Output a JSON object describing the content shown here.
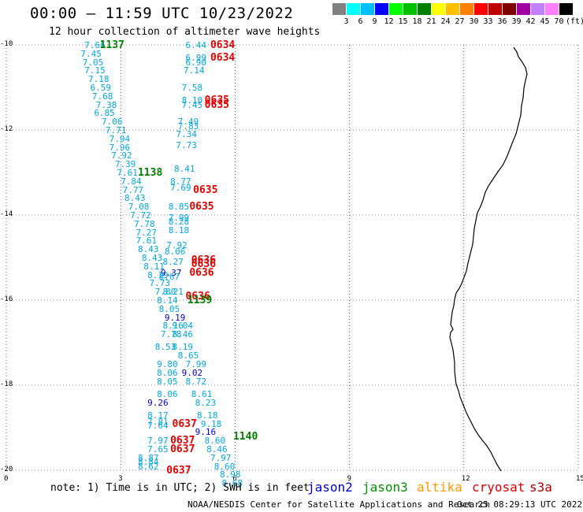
{
  "title": "00:00 – 11:59 UTC 10/23/2022",
  "subtitle": "12 hour collection of altimeter wave heights",
  "colorbar": {
    "colors": [
      "#808080",
      "#00ffff",
      "#00bfff",
      "#0000ff",
      "#00ff00",
      "#00c000",
      "#008000",
      "#ffff00",
      "#ffc000",
      "#ff8000",
      "#ff0000",
      "#c00000",
      "#800000",
      "#a000a0",
      "#c080ff",
      "#ff80ff",
      "#000000"
    ],
    "labels": [
      "3",
      "6",
      "9",
      "12",
      "15",
      "18",
      "21",
      "24",
      "27",
      "30",
      "33",
      "36",
      "39",
      "42",
      "45",
      "70"
    ],
    "unit": "(ft)"
  },
  "y_ticks": [
    "-10",
    "-12",
    "-14",
    "-16",
    "-18",
    "-20"
  ],
  "x_ticks": [
    "0",
    "3",
    "6",
    "9",
    "12",
    "15"
  ],
  "note": "note: 1) Time is in UTC; 2) SWH is in feet",
  "legend": [
    {
      "label": "jason2",
      "color": "#0000cc"
    },
    {
      "label": "jason3",
      "color": "#009000"
    },
    {
      "label": "altika",
      "color": "#ff9900"
    },
    {
      "label": "cryosat",
      "color": "#dd0000"
    },
    {
      "label": "s3a",
      "color": "#aa0000"
    }
  ],
  "credit": "NOAA/NESDIS Center for Satellite Applications and Research",
  "timestamp": "Oct 25 08:29:13 UTC 2022",
  "observations": [
    {
      "lon": 2.05,
      "lat": -10.0,
      "text": "7.66",
      "c": "cyan"
    },
    {
      "lon": 1.95,
      "lat": -10.2,
      "text": "7.45",
      "c": "cyan"
    },
    {
      "lon": 2.0,
      "lat": -10.4,
      "text": "7.05",
      "c": "cyan"
    },
    {
      "lon": 2.05,
      "lat": -10.6,
      "text": "7.15",
      "c": "cyan"
    },
    {
      "lon": 2.15,
      "lat": -10.8,
      "text": "7.18",
      "c": "cyan"
    },
    {
      "lon": 2.2,
      "lat": -11.0,
      "text": "6.59",
      "c": "cyan"
    },
    {
      "lon": 2.25,
      "lat": -11.2,
      "text": "7.68",
      "c": "cyan"
    },
    {
      "lon": 2.35,
      "lat": -11.4,
      "text": "7.38",
      "c": "cyan"
    },
    {
      "lon": 2.3,
      "lat": -11.6,
      "text": "6.85",
      "c": "cyan"
    },
    {
      "lon": 2.5,
      "lat": -11.8,
      "text": "7.06",
      "c": "cyan"
    },
    {
      "lon": 2.6,
      "lat": -12.0,
      "text": "7.71",
      "c": "cyan"
    },
    {
      "lon": 2.7,
      "lat": -12.2,
      "text": "7.94",
      "c": "cyan"
    },
    {
      "lon": 2.7,
      "lat": -12.4,
      "text": "7.96",
      "c": "cyan"
    },
    {
      "lon": 2.75,
      "lat": -12.6,
      "text": "7.92",
      "c": "cyan"
    },
    {
      "lon": 2.85,
      "lat": -12.8,
      "text": "7.39",
      "c": "cyan"
    },
    {
      "lon": 2.9,
      "lat": -13.0,
      "text": "7.61",
      "c": "cyan"
    },
    {
      "lon": 3.0,
      "lat": -13.2,
      "text": "7.84",
      "c": "cyan"
    },
    {
      "lon": 3.05,
      "lat": -13.4,
      "text": "7.77",
      "c": "cyan"
    },
    {
      "lon": 3.1,
      "lat": -13.6,
      "text": "8.43",
      "c": "cyan"
    },
    {
      "lon": 3.2,
      "lat": -13.8,
      "text": "7.08",
      "c": "cyan"
    },
    {
      "lon": 3.25,
      "lat": -14.0,
      "text": "7.72",
      "c": "cyan"
    },
    {
      "lon": 3.35,
      "lat": -14.2,
      "text": "7.78",
      "c": "cyan"
    },
    {
      "lon": 3.4,
      "lat": -14.4,
      "text": "7.27",
      "c": "cyan"
    },
    {
      "lon": 3.4,
      "lat": -14.6,
      "text": "7.61",
      "c": "cyan"
    },
    {
      "lon": 3.45,
      "lat": -14.8,
      "text": "8.43",
      "c": "cyan"
    },
    {
      "lon": 3.55,
      "lat": -15.0,
      "text": "8.43",
      "c": "cyan"
    },
    {
      "lon": 3.6,
      "lat": -15.2,
      "text": "8.11",
      "c": "cyan"
    },
    {
      "lon": 3.7,
      "lat": -15.4,
      "text": "8.19",
      "c": "cyan"
    },
    {
      "lon": 3.75,
      "lat": -15.6,
      "text": "7.73",
      "c": "cyan"
    },
    {
      "lon": 3.9,
      "lat": -15.8,
      "text": "7.80",
      "c": "cyan"
    },
    {
      "lon": 3.95,
      "lat": -16.0,
      "text": "8.14",
      "c": "cyan"
    },
    {
      "lon": 4.0,
      "lat": -16.2,
      "text": "8.05",
      "c": "cyan"
    },
    {
      "lon": 4.1,
      "lat": -16.6,
      "text": "8.16",
      "c": "cyan"
    },
    {
      "lon": 4.05,
      "lat": -16.8,
      "text": "7.78",
      "c": "cyan"
    },
    {
      "lon": 3.9,
      "lat": -17.1,
      "text": "8.53",
      "c": "cyan"
    },
    {
      "lon": 3.95,
      "lat": -17.5,
      "text": "9.80",
      "c": "cyan"
    },
    {
      "lon": 3.95,
      "lat": -17.7,
      "text": "8.06",
      "c": "cyan"
    },
    {
      "lon": 3.95,
      "lat": -17.9,
      "text": "8.05",
      "c": "cyan"
    },
    {
      "lon": 3.95,
      "lat": -18.2,
      "text": "8.06",
      "c": "cyan"
    },
    {
      "lon": 3.7,
      "lat": -18.4,
      "text": "9.26",
      "c": "blue"
    },
    {
      "lon": 3.7,
      "lat": -18.7,
      "text": "8.17",
      "c": "cyan"
    },
    {
      "lon": 3.7,
      "lat": -18.85,
      "text": "7.81",
      "c": "cyan"
    },
    {
      "lon": 3.7,
      "lat": -18.95,
      "text": "7.64",
      "c": "cyan"
    },
    {
      "lon": 3.7,
      "lat": -19.3,
      "text": "7.97",
      "c": "cyan"
    },
    {
      "lon": 3.7,
      "lat": -19.5,
      "text": "7.65",
      "c": "cyan"
    },
    {
      "lon": 3.45,
      "lat": -19.7,
      "text": "8.87",
      "c": "cyan"
    },
    {
      "lon": 3.45,
      "lat": -19.8,
      "text": "8.84",
      "c": "cyan"
    },
    {
      "lon": 3.45,
      "lat": -19.9,
      "text": "8.62",
      "c": "cyan"
    },
    {
      "lon": 2.45,
      "lat": -10.0,
      "text": "1137",
      "c": "green",
      "big": true
    },
    {
      "lon": 3.45,
      "lat": -13.0,
      "text": "1138",
      "c": "green",
      "big": true
    },
    {
      "lon": 4.7,
      "lat": -10.0,
      "text": "6.44",
      "c": "cyan"
    },
    {
      "lon": 4.7,
      "lat": -10.3,
      "text": "6.99",
      "c": "cyan"
    },
    {
      "lon": 4.7,
      "lat": -10.4,
      "text": "6.90",
      "c": "cyan"
    },
    {
      "lon": 4.65,
      "lat": -10.6,
      "text": "7.14",
      "c": "cyan"
    },
    {
      "lon": 4.6,
      "lat": -11.0,
      "text": "7.58",
      "c": "cyan"
    },
    {
      "lon": 4.6,
      "lat": -11.3,
      "text": "8.10",
      "c": "cyan"
    },
    {
      "lon": 4.6,
      "lat": -11.4,
      "text": "7.45",
      "c": "cyan"
    },
    {
      "lon": 4.5,
      "lat": -11.8,
      "text": "7.49",
      "c": "cyan"
    },
    {
      "lon": 4.5,
      "lat": -11.9,
      "text": "7.83",
      "c": "cyan"
    },
    {
      "lon": 4.45,
      "lat": -12.1,
      "text": "7.34",
      "c": "cyan"
    },
    {
      "lon": 4.45,
      "lat": -12.35,
      "text": "7.73",
      "c": "cyan"
    },
    {
      "lon": 4.4,
      "lat": -12.9,
      "text": "8.41",
      "c": "cyan"
    },
    {
      "lon": 4.3,
      "lat": -13.2,
      "text": "8.77",
      "c": "cyan"
    },
    {
      "lon": 4.3,
      "lat": -13.35,
      "text": "7.69",
      "c": "cyan"
    },
    {
      "lon": 4.25,
      "lat": -13.8,
      "text": "8.85",
      "c": "cyan"
    },
    {
      "lon": 4.25,
      "lat": -14.05,
      "text": "7.99",
      "c": "cyan"
    },
    {
      "lon": 4.25,
      "lat": -14.15,
      "text": "8.28",
      "c": "cyan"
    },
    {
      "lon": 4.25,
      "lat": -14.35,
      "text": "8.18",
      "c": "cyan"
    },
    {
      "lon": 4.2,
      "lat": -14.7,
      "text": "7.92",
      "c": "cyan"
    },
    {
      "lon": 4.15,
      "lat": -14.85,
      "text": "8.06",
      "c": "cyan"
    },
    {
      "lon": 4.1,
      "lat": -15.1,
      "text": "8.27",
      "c": "cyan"
    },
    {
      "lon": 4.05,
      "lat": -15.35,
      "text": "9.37",
      "c": "blue"
    },
    {
      "lon": 4.0,
      "lat": -15.45,
      "text": "8.67",
      "c": "cyan"
    },
    {
      "lon": 4.1,
      "lat": -15.8,
      "text": "8.21",
      "c": "cyan"
    },
    {
      "lon": 4.15,
      "lat": -16.4,
      "text": "9.19",
      "c": "blue"
    },
    {
      "lon": 4.35,
      "lat": -16.6,
      "text": "9.04",
      "c": "cyan"
    },
    {
      "lon": 4.35,
      "lat": -16.8,
      "text": "8.46",
      "c": "cyan"
    },
    {
      "lon": 4.35,
      "lat": -17.1,
      "text": "8.19",
      "c": "cyan"
    },
    {
      "lon": 4.5,
      "lat": -17.3,
      "text": "8.65",
      "c": "cyan"
    },
    {
      "lon": 4.7,
      "lat": -17.5,
      "text": "7.99",
      "c": "cyan"
    },
    {
      "lon": 4.6,
      "lat": -17.7,
      "text": "9.02",
      "c": "blue"
    },
    {
      "lon": 4.7,
      "lat": -17.9,
      "text": "8.72",
      "c": "cyan"
    },
    {
      "lon": 4.85,
      "lat": -18.2,
      "text": "8.61",
      "c": "cyan"
    },
    {
      "lon": 4.95,
      "lat": -18.4,
      "text": "8.23",
      "c": "cyan"
    },
    {
      "lon": 5.0,
      "lat": -18.7,
      "text": "8.18",
      "c": "cyan"
    },
    {
      "lon": 5.1,
      "lat": -18.9,
      "text": "9.18",
      "c": "cyan"
    },
    {
      "lon": 4.95,
      "lat": -19.1,
      "text": "9.16",
      "c": "blue"
    },
    {
      "lon": 5.2,
      "lat": -19.3,
      "text": "8.60",
      "c": "cyan"
    },
    {
      "lon": 5.25,
      "lat": -19.5,
      "text": "8.46",
      "c": "cyan"
    },
    {
      "lon": 5.35,
      "lat": -19.7,
      "text": "7.97",
      "c": "cyan"
    },
    {
      "lon": 5.45,
      "lat": -19.9,
      "text": "8.60",
      "c": "cyan"
    },
    {
      "lon": 5.6,
      "lat": -20.1,
      "text": "8.98",
      "c": "cyan"
    },
    {
      "lon": 5.65,
      "lat": -20.3,
      "text": "8.68",
      "c": "cyan"
    },
    {
      "lon": 5.35,
      "lat": -10.0,
      "text": "0634",
      "c": "red",
      "big": true
    },
    {
      "lon": 5.35,
      "lat": -10.3,
      "text": "0634",
      "c": "red",
      "big": true
    },
    {
      "lon": 5.2,
      "lat": -11.3,
      "text": "0635",
      "c": "red",
      "big": true
    },
    {
      "lon": 5.2,
      "lat": -11.4,
      "text": "0635",
      "c": "red",
      "big": true
    },
    {
      "lon": 4.9,
      "lat": -13.4,
      "text": "0635",
      "c": "red",
      "big": true
    },
    {
      "lon": 4.8,
      "lat": -13.8,
      "text": "0635",
      "c": "red",
      "big": true
    },
    {
      "lon": 4.85,
      "lat": -15.05,
      "text": "0636",
      "c": "red",
      "big": true
    },
    {
      "lon": 4.85,
      "lat": -15.15,
      "text": "0636",
      "c": "red",
      "big": true
    },
    {
      "lon": 4.8,
      "lat": -15.35,
      "text": "0636",
      "c": "red",
      "big": true
    },
    {
      "lon": 4.7,
      "lat": -15.9,
      "text": "0636",
      "c": "red",
      "big": true
    },
    {
      "lon": 4.75,
      "lat": -16.0,
      "text": "1139",
      "c": "green",
      "big": true
    },
    {
      "lon": 4.35,
      "lat": -18.9,
      "text": "0637",
      "c": "red",
      "big": true
    },
    {
      "lon": 4.3,
      "lat": -19.3,
      "text": "0637",
      "c": "red",
      "big": true
    },
    {
      "lon": 4.3,
      "lat": -19.5,
      "text": "0637",
      "c": "red",
      "big": true
    },
    {
      "lon": 4.2,
      "lat": -20.0,
      "text": "0637",
      "c": "red",
      "big": true
    },
    {
      "lon": 5.95,
      "lat": -19.2,
      "text": "1140",
      "c": "green",
      "big": true
    }
  ],
  "palette": {
    "cyan": "#00a8e0",
    "blue": "#0000c8",
    "green": "#008000",
    "red": "#e00000"
  }
}
